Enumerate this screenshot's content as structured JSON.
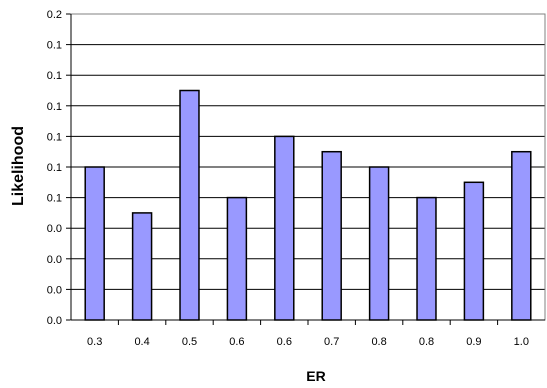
{
  "chart_data": {
    "type": "bar",
    "xlabel": "ER",
    "ylabel": "Likelihood",
    "categories": [
      "0.3",
      "0.4",
      "0.5",
      "0.6",
      "0.6",
      "0.7",
      "0.8",
      "0.8",
      "0.9",
      "1.0"
    ],
    "values": [
      0.1,
      0.07,
      0.15,
      0.08,
      0.12,
      0.11,
      0.1,
      0.08,
      0.09,
      0.11
    ],
    "y_tick_labels": [
      "0.0",
      "0.0",
      "0.0",
      "0.0",
      "0.1",
      "0.1",
      "0.1",
      "0.1",
      "0.1",
      "0.1",
      "0.2"
    ],
    "ylim": [
      0,
      0.2
    ],
    "grid": true,
    "legend": "none",
    "colors": {
      "bar_fill": "#9999ff",
      "bar_stroke": "#000000",
      "grid": "#000000",
      "axis": "#000000"
    }
  }
}
